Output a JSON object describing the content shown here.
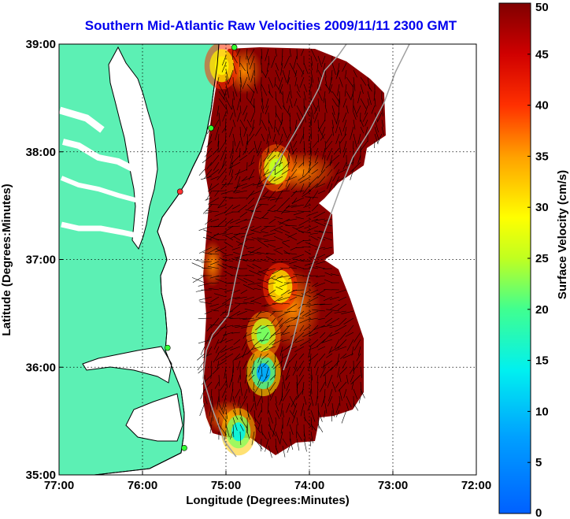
{
  "title": "Southern Mid-Atlantic Raw Velocities 2009/11/11 2300 GMT",
  "colors": {
    "land": "#5cf0b4",
    "water": "#ffffff",
    "coast": "#000000",
    "isobath": "#a0a0a0",
    "vector": "#000000",
    "site_active": "#33ff33",
    "site_inactive": "#ff3333"
  },
  "chart_data": {
    "type": "heatmap",
    "xlabel": "Longitude (Degrees:Minutes)",
    "ylabel": "Latitude (Degrees:Minutes)",
    "x_ticks": [
      "77:00",
      "76:00",
      "75:00",
      "74:00",
      "73:00",
      "72:00"
    ],
    "y_ticks": [
      "39:00",
      "38:00",
      "37:00",
      "36:00",
      "35:00"
    ],
    "xlim": [
      -77,
      -72
    ],
    "ylim": [
      35,
      39
    ],
    "grid": true,
    "colorbar": {
      "label": "Surface Velocity (cm/s)",
      "range": [
        0,
        50
      ],
      "ticks": [
        "0",
        "5",
        "10",
        "15",
        "20",
        "25",
        "30",
        "35",
        "40",
        "45",
        "50"
      ],
      "placement": "right"
    },
    "low_velocity_features": [
      {
        "lon": -74.55,
        "lat": 35.95,
        "velocity": 8
      },
      {
        "lon": -74.85,
        "lat": 35.4,
        "velocity": 15
      },
      {
        "lon": -74.55,
        "lat": 36.3,
        "velocity": 22
      },
      {
        "lon": -74.4,
        "lat": 37.85,
        "velocity": 25
      },
      {
        "lon": -74.35,
        "lat": 36.75,
        "velocity": 30
      },
      {
        "lon": -75.05,
        "lat": 38.8,
        "velocity": 30
      }
    ],
    "radar_sites": [
      {
        "lon": -74.9,
        "lat": 38.97,
        "status": "active"
      },
      {
        "lon": -75.18,
        "lat": 38.22,
        "status": "active"
      },
      {
        "lon": -75.55,
        "lat": 37.63,
        "status": "inactive"
      },
      {
        "lon": -75.7,
        "lat": 36.18,
        "status": "active"
      },
      {
        "lon": -75.5,
        "lat": 35.25,
        "status": "active"
      }
    ]
  }
}
